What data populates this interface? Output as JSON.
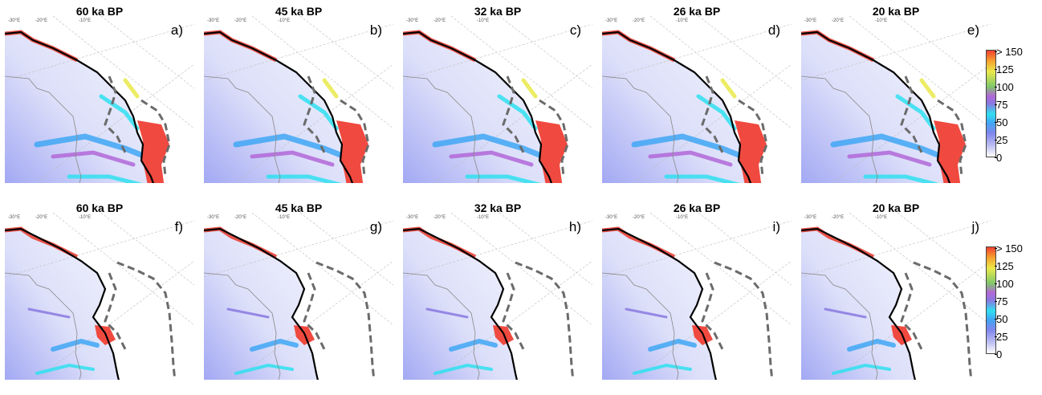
{
  "panels": [
    {
      "title": "60 ka BP",
      "label": "a)",
      "row": "top"
    },
    {
      "title": "45 ka BP",
      "label": "b)",
      "row": "top"
    },
    {
      "title": "32 ka BP",
      "label": "c)",
      "row": "top"
    },
    {
      "title": "26 ka BP",
      "label": "d)",
      "row": "top"
    },
    {
      "title": "20 ka BP",
      "label": "e)",
      "row": "top"
    },
    {
      "title": "60 ka BP",
      "label": "f)",
      "row": "bottom"
    },
    {
      "title": "45 ka BP",
      "label": "g)",
      "row": "bottom"
    },
    {
      "title": "32 ka BP",
      "label": "h)",
      "row": "bottom"
    },
    {
      "title": "26 ka BP",
      "label": "i)",
      "row": "bottom"
    },
    {
      "title": "20 ka BP",
      "label": "j)",
      "row": "bottom"
    }
  ],
  "longitude_labels": [
    "-30°E",
    "-20°E",
    "-10°E"
  ],
  "colorbar": {
    "ticks": [
      "> 150",
      "125",
      "100",
      "75",
      "50",
      "25",
      "0"
    ],
    "colors": [
      "#ffffff",
      "#bfc0f2",
      "#7f86ee",
      "#3fa7f4",
      "#2fe0f0",
      "#8a78e0",
      "#b267d8",
      "#7fc86a",
      "#e9e94a",
      "#f7a32f",
      "#f04030"
    ]
  },
  "colors": {
    "ice_margin": "#000000",
    "dashed_outline": "#6b6b6b",
    "fast_flow": "#f04a40"
  }
}
